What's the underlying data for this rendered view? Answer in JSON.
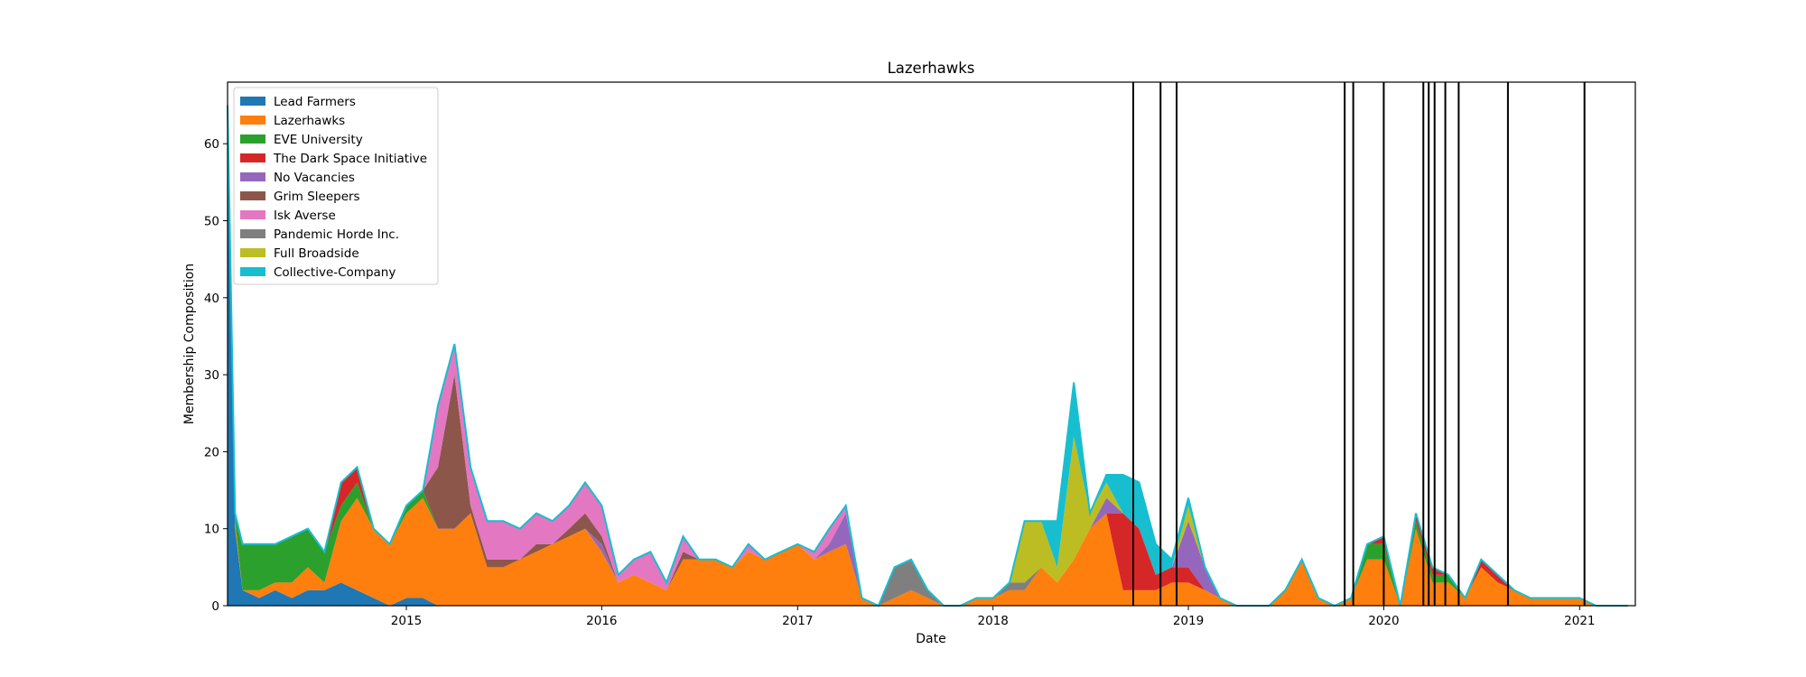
{
  "chart_data": {
    "type": "area",
    "title": "Lazerhawks",
    "xlabel": "Date",
    "ylabel": "Membership Composition",
    "xlim": [
      "2014-02-01",
      "2021-04-15"
    ],
    "ylim": [
      0,
      68
    ],
    "x_ticks": [
      "2015",
      "2016",
      "2017",
      "2018",
      "2019",
      "2020",
      "2021"
    ],
    "y_ticks": [
      0,
      10,
      20,
      30,
      40,
      50,
      60
    ],
    "grid": false,
    "legend_position": "upper-left",
    "x": [
      "2014-02-01",
      "2014-02-15",
      "2014-03-01",
      "2014-04-01",
      "2014-05-01",
      "2014-06-01",
      "2014-07-01",
      "2014-08-01",
      "2014-09-01",
      "2014-10-01",
      "2014-11-01",
      "2014-12-01",
      "2015-01-01",
      "2015-02-01",
      "2015-03-01",
      "2015-04-01",
      "2015-05-01",
      "2015-06-01",
      "2015-07-01",
      "2015-08-01",
      "2015-09-01",
      "2015-10-01",
      "2015-11-01",
      "2015-12-01",
      "2016-01-01",
      "2016-02-01",
      "2016-03-01",
      "2016-04-01",
      "2016-05-01",
      "2016-06-01",
      "2016-07-01",
      "2016-08-01",
      "2016-09-01",
      "2016-10-01",
      "2016-11-01",
      "2016-12-01",
      "2017-01-01",
      "2017-02-01",
      "2017-03-01",
      "2017-04-01",
      "2017-05-01",
      "2017-06-01",
      "2017-07-01",
      "2017-08-01",
      "2017-09-01",
      "2017-10-01",
      "2017-11-01",
      "2017-12-01",
      "2018-01-01",
      "2018-02-01",
      "2018-03-01",
      "2018-04-01",
      "2018-05-01",
      "2018-06-01",
      "2018-07-01",
      "2018-08-01",
      "2018-09-01",
      "2018-10-01",
      "2018-11-01",
      "2018-12-01",
      "2019-01-01",
      "2019-02-01",
      "2019-03-01",
      "2019-04-01",
      "2019-05-01",
      "2019-06-01",
      "2019-07-01",
      "2019-08-01",
      "2019-09-01",
      "2019-10-01",
      "2019-11-01",
      "2019-12-01",
      "2020-01-01",
      "2020-02-01",
      "2020-03-01",
      "2020-04-01",
      "2020-05-01",
      "2020-06-01",
      "2020-07-01",
      "2020-08-01",
      "2020-09-01",
      "2020-10-01",
      "2020-11-01",
      "2020-12-01",
      "2021-01-01",
      "2021-02-01",
      "2021-03-01",
      "2021-04-01"
    ],
    "series": [
      {
        "name": "Lead Farmers",
        "color": "#1f77b4",
        "values": [
          65,
          10,
          2,
          1,
          2,
          1,
          2,
          2,
          3,
          2,
          1,
          0,
          1,
          1,
          0,
          0,
          0,
          0,
          0,
          0,
          0,
          0,
          0,
          0,
          0,
          0,
          0,
          0,
          0,
          0,
          0,
          0,
          0,
          0,
          0,
          0,
          0,
          0,
          0,
          0,
          0,
          0,
          0,
          0,
          0,
          0,
          0,
          0,
          0,
          0,
          0,
          0,
          0,
          0,
          0,
          0,
          0,
          0,
          0,
          0,
          0,
          0,
          0,
          0,
          0,
          0,
          0,
          0,
          0,
          0,
          0,
          0,
          0,
          0,
          0,
          0,
          0,
          0,
          0,
          0,
          0,
          0,
          0,
          0,
          0,
          0,
          0,
          0
        ]
      },
      {
        "name": "Lazerhawks",
        "color": "#ff7f0e",
        "values": [
          0,
          1,
          0,
          1,
          1,
          2,
          3,
          1,
          8,
          12,
          9,
          8,
          11,
          13,
          10,
          10,
          12,
          5,
          5,
          6,
          7,
          8,
          9,
          10,
          7,
          3,
          4,
          3,
          2,
          6,
          6,
          6,
          5,
          7,
          6,
          7,
          8,
          6,
          7,
          8,
          1,
          0,
          1,
          2,
          1,
          0,
          0,
          1,
          1,
          2,
          2,
          5,
          3,
          6,
          10,
          12,
          2,
          2,
          2,
          3,
          3,
          2,
          1,
          0,
          0,
          0,
          2,
          6,
          1,
          0,
          1,
          6,
          6,
          0,
          10,
          3,
          3,
          1,
          5,
          3,
          2,
          1,
          1,
          1,
          1,
          0,
          0,
          0
        ]
      },
      {
        "name": "EVE University",
        "color": "#2ca02c",
        "values": [
          0,
          1,
          6,
          6,
          5,
          6,
          5,
          4,
          2,
          2,
          0,
          0,
          1,
          1,
          0,
          0,
          0,
          0,
          0,
          0,
          0,
          0,
          0,
          0,
          0,
          0,
          0,
          0,
          0,
          0,
          0,
          0,
          0,
          0,
          0,
          0,
          0,
          0,
          0,
          0,
          0,
          0,
          0,
          0,
          0,
          0,
          0,
          0,
          0,
          0,
          0,
          0,
          0,
          0,
          0,
          0,
          0,
          0,
          0,
          0,
          0,
          0,
          0,
          0,
          0,
          0,
          0,
          0,
          0,
          0,
          0,
          2,
          2,
          0,
          1,
          1,
          1,
          0,
          0,
          0,
          0,
          0,
          0,
          0,
          0,
          0,
          0,
          0
        ]
      },
      {
        "name": "The Dark Space Initiative",
        "color": "#d62728",
        "values": [
          0,
          0,
          0,
          0,
          0,
          0,
          0,
          0,
          3,
          2,
          0,
          0,
          0,
          0,
          0,
          0,
          0,
          0,
          0,
          0,
          0,
          0,
          0,
          0,
          0,
          0,
          0,
          0,
          0,
          0,
          0,
          0,
          0,
          0,
          0,
          0,
          0,
          0,
          0,
          0,
          0,
          0,
          0,
          0,
          0,
          0,
          0,
          0,
          0,
          0,
          0,
          0,
          0,
          0,
          0,
          0,
          10,
          8,
          2,
          2,
          2,
          0,
          0,
          0,
          0,
          0,
          0,
          0,
          0,
          0,
          0,
          0,
          1,
          0,
          1,
          1,
          0,
          0,
          1,
          1,
          0,
          0,
          0,
          0,
          0,
          0,
          0,
          0
        ]
      },
      {
        "name": "No Vacancies",
        "color": "#9467bd",
        "values": [
          0,
          0,
          0,
          0,
          0,
          0,
          0,
          0,
          0,
          0,
          0,
          0,
          0,
          0,
          0,
          0,
          0,
          0,
          0,
          0,
          0,
          0,
          0,
          0,
          1,
          0,
          0,
          0,
          0,
          0,
          0,
          0,
          0,
          0,
          0,
          0,
          0,
          0,
          1,
          4,
          0,
          0,
          0,
          0,
          0,
          0,
          0,
          0,
          0,
          0,
          0,
          0,
          0,
          0,
          0,
          2,
          0,
          0,
          0,
          0,
          6,
          3,
          0,
          0,
          0,
          0,
          0,
          0,
          0,
          0,
          0,
          0,
          0,
          0,
          0,
          0,
          0,
          0,
          0,
          0,
          0,
          0,
          0,
          0,
          0,
          0,
          0,
          0
        ]
      },
      {
        "name": "Grim Sleepers",
        "color": "#8c564b",
        "values": [
          0,
          0,
          0,
          0,
          0,
          0,
          0,
          0,
          0,
          0,
          0,
          0,
          0,
          0,
          8,
          20,
          1,
          1,
          1,
          0,
          1,
          0,
          1,
          2,
          1,
          0,
          0,
          0,
          0,
          1,
          0,
          0,
          0,
          0,
          0,
          0,
          0,
          0,
          0,
          0,
          0,
          0,
          0,
          0,
          0,
          0,
          0,
          0,
          0,
          0,
          0,
          0,
          0,
          0,
          0,
          0,
          0,
          0,
          0,
          0,
          0,
          0,
          0,
          0,
          0,
          0,
          0,
          0,
          0,
          0,
          0,
          0,
          0,
          0,
          0,
          0,
          0,
          0,
          0,
          0,
          0,
          0,
          0,
          0,
          0,
          0,
          0,
          0
        ]
      },
      {
        "name": "Isk Averse",
        "color": "#e377c2",
        "values": [
          0,
          0,
          0,
          0,
          0,
          0,
          0,
          0,
          0,
          0,
          0,
          0,
          0,
          0,
          8,
          4,
          5,
          5,
          5,
          4,
          4,
          3,
          3,
          4,
          4,
          1,
          2,
          4,
          1,
          2,
          0,
          0,
          0,
          1,
          0,
          0,
          0,
          1,
          2,
          1,
          0,
          0,
          0,
          0,
          0,
          0,
          0,
          0,
          0,
          0,
          0,
          0,
          0,
          0,
          0,
          0,
          0,
          0,
          0,
          0,
          0,
          0,
          0,
          0,
          0,
          0,
          0,
          0,
          0,
          0,
          0,
          0,
          0,
          0,
          0,
          0,
          0,
          0,
          0,
          0,
          0,
          0,
          0,
          0,
          0,
          0,
          0,
          0
        ]
      },
      {
        "name": "Pandemic Horde Inc.",
        "color": "#7f7f7f",
        "values": [
          0,
          0,
          0,
          0,
          0,
          0,
          0,
          0,
          0,
          0,
          0,
          0,
          0,
          0,
          0,
          0,
          0,
          0,
          0,
          0,
          0,
          0,
          0,
          0,
          0,
          0,
          0,
          0,
          0,
          0,
          0,
          0,
          0,
          0,
          0,
          0,
          0,
          0,
          0,
          0,
          0,
          0,
          4,
          4,
          1,
          0,
          0,
          0,
          0,
          1,
          1,
          0,
          0,
          0,
          0,
          0,
          0,
          0,
          0,
          0,
          0,
          0,
          0,
          0,
          0,
          0,
          0,
          0,
          0,
          0,
          0,
          0,
          0,
          0,
          0,
          0,
          0,
          0,
          0,
          0,
          0,
          0,
          0,
          0,
          0,
          0,
          0,
          0
        ]
      },
      {
        "name": "Full Broadside",
        "color": "#bcbd22",
        "values": [
          0,
          0,
          0,
          0,
          0,
          0,
          0,
          0,
          0,
          0,
          0,
          0,
          0,
          0,
          0,
          0,
          0,
          0,
          0,
          0,
          0,
          0,
          0,
          0,
          0,
          0,
          0,
          0,
          0,
          0,
          0,
          0,
          0,
          0,
          0,
          0,
          0,
          0,
          0,
          0,
          0,
          0,
          0,
          0,
          0,
          0,
          0,
          0,
          0,
          0,
          8,
          6,
          2,
          16,
          2,
          2,
          0,
          0,
          0,
          0,
          2,
          0,
          0,
          0,
          0,
          0,
          0,
          0,
          0,
          0,
          0,
          0,
          0,
          0,
          0,
          0,
          0,
          0,
          0,
          0,
          0,
          0,
          0,
          0,
          0,
          0,
          0,
          0
        ]
      },
      {
        "name": "Collective-Company",
        "color": "#17becf",
        "values": [
          0,
          0,
          0,
          0,
          0,
          0,
          0,
          0,
          0,
          0,
          0,
          0,
          0,
          0,
          0,
          0,
          0,
          0,
          0,
          0,
          0,
          0,
          0,
          0,
          0,
          0,
          0,
          0,
          0,
          0,
          0,
          0,
          0,
          0,
          0,
          0,
          0,
          0,
          0,
          0,
          0,
          0,
          0,
          0,
          0,
          0,
          0,
          0,
          0,
          0,
          0,
          0,
          6,
          7,
          0,
          1,
          5,
          6,
          4,
          1,
          1,
          0,
          0,
          0,
          0,
          0,
          0,
          0,
          0,
          0,
          0,
          0,
          0,
          0,
          0,
          0,
          0,
          0,
          0,
          0,
          0,
          0,
          0,
          0,
          0,
          0,
          0,
          0
        ]
      }
    ],
    "vlines": [
      "2018-09-20",
      "2018-11-10",
      "2018-12-10",
      "2019-10-20",
      "2019-11-05",
      "2020-01-01",
      "2020-03-15",
      "2020-03-25",
      "2020-04-05",
      "2020-04-25",
      "2020-05-20",
      "2020-08-20",
      "2021-01-10"
    ],
    "outline_color": "#17becf"
  }
}
